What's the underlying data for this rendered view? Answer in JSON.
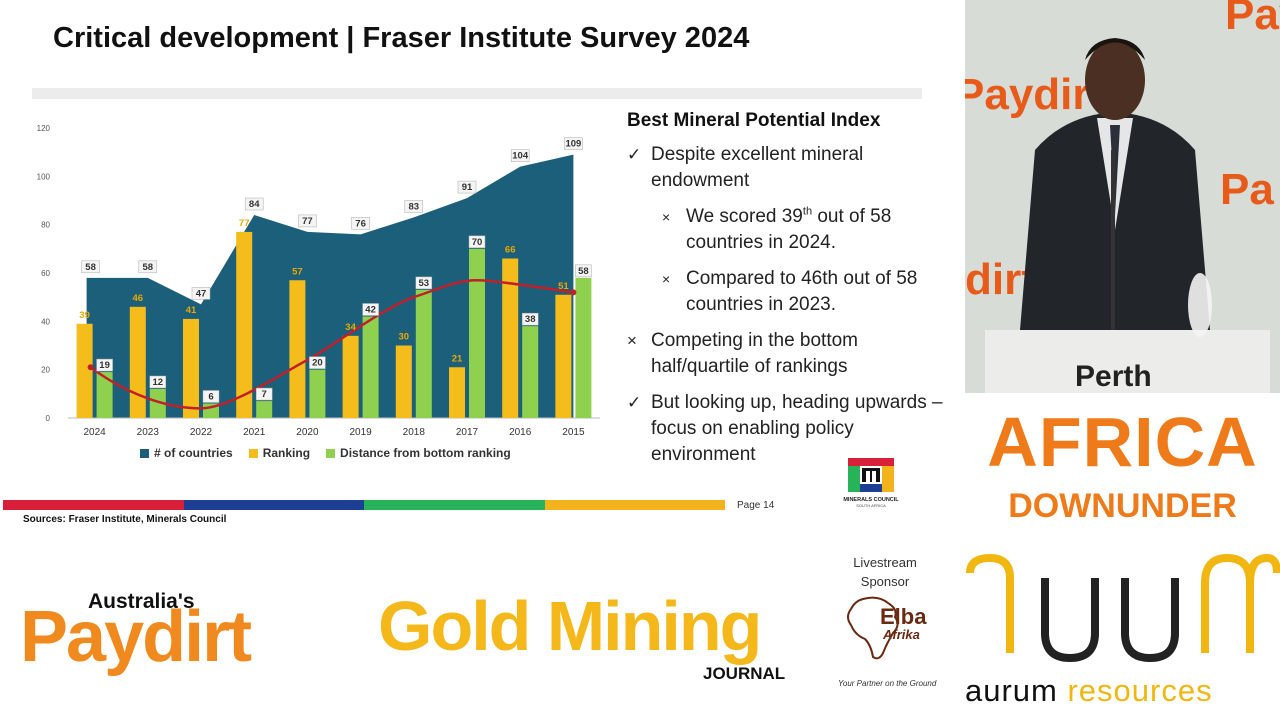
{
  "slide": {
    "title": "Critical development | Fraser Institute Survey 2024",
    "page": "Page 14",
    "sources": "Sources: Fraser Institute, Minerals Council",
    "logo_caption": "MINERALS COUNCIL",
    "logo_sub": "SOUTH AFRICA"
  },
  "panel": {
    "heading": "Best Mineral Potential Index",
    "b1": "Despite excellent mineral endowment",
    "b2_pre": "We scored 39",
    "b2_sup": "th",
    "b2_post": " out of 58 countries in 2024.",
    "b3": "Compared to 46th out of 58 countries in 2023.",
    "b4": "Competing in the bottom half/quartile of rankings",
    "b5": "But looking up, heading upwards – focus on enabling policy environment",
    "check": "✓",
    "cross": "×"
  },
  "chart_data": {
    "type": "bar",
    "categories": [
      "2024",
      "2023",
      "2022",
      "2021",
      "2020",
      "2019",
      "2018",
      "2017",
      "2016",
      "2015"
    ],
    "ylim": [
      0,
      120
    ],
    "yticks": [
      0,
      20,
      40,
      60,
      80,
      100,
      120
    ],
    "grid": false,
    "legend_position": "bottom",
    "series": [
      {
        "name": "# of countries",
        "kind": "area",
        "color": "#1c5f7a",
        "values": [
          58,
          58,
          47,
          84,
          77,
          76,
          83,
          91,
          104,
          109
        ]
      },
      {
        "name": "Ranking",
        "kind": "bar",
        "color": "#f5bd1b",
        "values": [
          39,
          46,
          41,
          77,
          57,
          34,
          30,
          21,
          66,
          51
        ]
      },
      {
        "name": "Distance from bottom ranking",
        "kind": "bar",
        "color": "#8fd14f",
        "values": [
          19,
          12,
          6,
          7,
          20,
          42,
          53,
          70,
          38,
          58
        ]
      }
    ],
    "trendline_color": "#c0202a"
  },
  "colors": {
    "bar_segments": [
      "#d8203a",
      "#1c3f94",
      "#27b35a",
      "#f2b31c"
    ]
  },
  "right": {
    "bg_words": [
      "Paydirt",
      "Paydirt",
      "dirt",
      "Pa"
    ],
    "podium": "Perth",
    "africa_line1": "AFRICA",
    "africa_line2": "DOWNUNDER",
    "aurum_a": "aurum",
    "aurum_b": " resources"
  },
  "bottom": {
    "paydirt_small": "Australia's",
    "paydirt_big": "Paydirt",
    "gmj": "Gold Mining",
    "gmj_sub": "JOURNAL",
    "livestream": "Livestream Sponsor",
    "elba": "Elba",
    "elba2": "Afrika",
    "elba_tag": "Your Partner on the Ground"
  }
}
